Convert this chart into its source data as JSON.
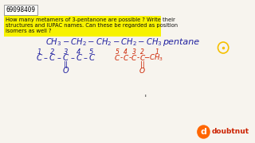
{
  "bg_color": "#f7f4ee",
  "question_id": "69098409",
  "highlight_color": "#f7f200",
  "title_color": "#111111",
  "blue": "#2020a0",
  "red": "#cc2200",
  "orange": "#ff6600",
  "logo_red": "#cc2200",
  "circle_color": "#f5c000",
  "q_line1": "How many metamers of 3-pentanone are possible ? Write their",
  "q_line2": "structures and IUPAC names. Can these be regarded as position",
  "q_line3": "isomers as well ?",
  "chain_top": "CH₃ – CH₂ – CH₂ – CH₂ – CH₃",
  "pentane": "pentane",
  "nums1": [
    "1",
    "2",
    "3",
    "4",
    "5"
  ],
  "chain_blue": [
    "C",
    "–",
    "C",
    "–",
    "C",
    "–",
    "C",
    "–",
    "C"
  ],
  "carbonyl_blue": "||",
  "O_blue": "O",
  "nums2": [
    "5",
    "4",
    "3",
    "2",
    "1"
  ],
  "chain_red_compact": [
    "C",
    "-",
    "C",
    "-",
    "C",
    "-",
    "C"
  ],
  "CH3_red": "-CH₃",
  "carbonyl_red": "||",
  "O_red": "O",
  "apostrophe": "'"
}
